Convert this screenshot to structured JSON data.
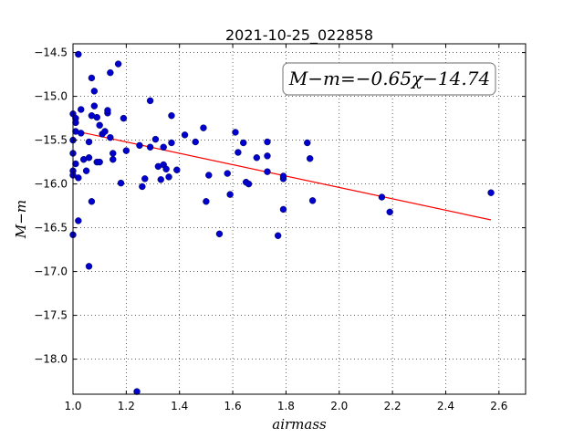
{
  "chart_data": {
    "type": "scatter",
    "title": "2021-10-25_022858",
    "xlabel": "airmass",
    "ylabel": "M−m",
    "xlim": [
      1.0,
      2.7
    ],
    "ylim": [
      -18.4,
      -14.4
    ],
    "xticks": [
      1.0,
      1.2,
      1.4,
      1.6,
      1.8,
      2.0,
      2.2,
      2.4,
      2.6
    ],
    "xtick_labels": [
      "1.0",
      "1.2",
      "1.4",
      "1.6",
      "1.8",
      "2.0",
      "2.2",
      "2.4",
      "2.6"
    ],
    "yticks": [
      -14.5,
      -15.0,
      -15.5,
      -16.0,
      -16.5,
      -17.0,
      -17.5,
      -18.0
    ],
    "ytick_labels": [
      "−14.5",
      "−15.0",
      "−15.5",
      "−16.0",
      "−16.5",
      "−17.0",
      "−17.5",
      "−18.0"
    ],
    "grid": true,
    "annotation": "M−m=−0.65χ−14.74",
    "fit": {
      "slope": -0.65,
      "intercept": -14.74,
      "x_range": [
        1.0,
        2.57
      ],
      "color": "#ff0000"
    },
    "point_color": "#0000cc",
    "points": [
      [
        1.0,
        -15.2
      ],
      [
        1.0,
        -15.5
      ],
      [
        1.0,
        -15.85
      ],
      [
        1.0,
        -15.9
      ],
      [
        1.0,
        -16.58
      ],
      [
        1.0,
        -15.65
      ],
      [
        1.01,
        -15.25
      ],
      [
        1.01,
        -15.3
      ],
      [
        1.01,
        -15.4
      ],
      [
        1.01,
        -15.77
      ],
      [
        1.02,
        -15.93
      ],
      [
        1.02,
        -14.52
      ],
      [
        1.02,
        -16.42
      ],
      [
        1.03,
        -15.15
      ],
      [
        1.03,
        -15.42
      ],
      [
        1.04,
        -15.72
      ],
      [
        1.05,
        -15.85
      ],
      [
        1.06,
        -15.52
      ],
      [
        1.06,
        -15.7
      ],
      [
        1.06,
        -16.94
      ],
      [
        1.07,
        -15.22
      ],
      [
        1.07,
        -16.2
      ],
      [
        1.07,
        -14.79
      ],
      [
        1.08,
        -14.94
      ],
      [
        1.08,
        -15.11
      ],
      [
        1.09,
        -15.24
      ],
      [
        1.09,
        -15.75
      ],
      [
        1.1,
        -15.75
      ],
      [
        1.1,
        -15.33
      ],
      [
        1.11,
        -15.43
      ],
      [
        1.12,
        -15.4
      ],
      [
        1.13,
        -15.19
      ],
      [
        1.13,
        -15.16
      ],
      [
        1.14,
        -15.47
      ],
      [
        1.14,
        -14.73
      ],
      [
        1.15,
        -15.65
      ],
      [
        1.15,
        -15.72
      ],
      [
        1.17,
        -14.63
      ],
      [
        1.18,
        -15.99
      ],
      [
        1.19,
        -15.25
      ],
      [
        1.2,
        -15.62
      ],
      [
        1.24,
        -18.37
      ],
      [
        1.25,
        -15.56
      ],
      [
        1.26,
        -16.03
      ],
      [
        1.27,
        -15.94
      ],
      [
        1.29,
        -15.05
      ],
      [
        1.29,
        -15.58
      ],
      [
        1.31,
        -15.49
      ],
      [
        1.32,
        -15.8
      ],
      [
        1.33,
        -15.95
      ],
      [
        1.34,
        -15.58
      ],
      [
        1.34,
        -15.78
      ],
      [
        1.35,
        -15.83
      ],
      [
        1.36,
        -15.92
      ],
      [
        1.37,
        -15.22
      ],
      [
        1.37,
        -15.53
      ],
      [
        1.39,
        -15.84
      ],
      [
        1.42,
        -15.44
      ],
      [
        1.46,
        -15.52
      ],
      [
        1.49,
        -15.36
      ],
      [
        1.5,
        -16.2
      ],
      [
        1.51,
        -15.9
      ],
      [
        1.55,
        -16.57
      ],
      [
        1.58,
        -15.88
      ],
      [
        1.59,
        -16.12
      ],
      [
        1.61,
        -15.41
      ],
      [
        1.62,
        -15.64
      ],
      [
        1.64,
        -15.53
      ],
      [
        1.65,
        -15.98
      ],
      [
        1.66,
        -16.0
      ],
      [
        1.69,
        -15.7
      ],
      [
        1.73,
        -15.52
      ],
      [
        1.73,
        -15.68
      ],
      [
        1.73,
        -15.86
      ],
      [
        1.77,
        -16.59
      ],
      [
        1.79,
        -15.94
      ],
      [
        1.79,
        -16.29
      ],
      [
        1.79,
        -15.91
      ],
      [
        1.88,
        -15.53
      ],
      [
        1.89,
        -15.71
      ],
      [
        1.9,
        -16.19
      ],
      [
        2.16,
        -16.15
      ],
      [
        2.19,
        -16.32
      ],
      [
        2.57,
        -16.1
      ]
    ]
  }
}
